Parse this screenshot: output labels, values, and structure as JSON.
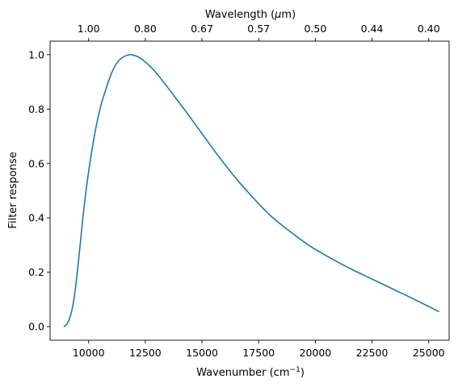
{
  "chart_data": {
    "type": "line",
    "xlabel": "Wavenumber (cm",
    "xlabel_superscript": "−1",
    "xlabel_suffix": ")",
    "ylabel": "Filter response",
    "top_xlabel": "Wavelength (",
    "top_xlabel_symbol": "μ",
    "top_xlabel_suffix": "m)",
    "xlim": [
      8300,
      25900
    ],
    "ylim": [
      -0.05,
      1.05
    ],
    "grid": false,
    "legend": "none",
    "line_color": "#1f77b4",
    "x_ticks": [
      10000,
      12500,
      15000,
      17500,
      20000,
      22500,
      25000
    ],
    "x_tick_labels": [
      "10000",
      "12500",
      "15000",
      "17500",
      "20000",
      "22500",
      "25000"
    ],
    "y_ticks": [
      0.0,
      0.2,
      0.4,
      0.6,
      0.8,
      1.0
    ],
    "y_tick_labels": [
      "0.0",
      "0.2",
      "0.4",
      "0.6",
      "0.8",
      "1.0"
    ],
    "top_ticks": [
      10000,
      12500,
      15000,
      17500,
      20000,
      22500,
      25000
    ],
    "top_tick_labels": [
      "1.00",
      "0.80",
      "0.67",
      "0.57",
      "0.50",
      "0.44",
      "0.40"
    ],
    "series": [
      {
        "x": [
          8900,
          9050,
          9200,
          9350,
          9500,
          9650,
          9800,
          10000,
          10250,
          10500,
          10750,
          11000,
          11250,
          11500,
          11800,
          12100,
          12400,
          12800,
          13300,
          13800,
          14300,
          15000,
          15700,
          16500,
          17300,
          18000,
          18800,
          19700,
          20500,
          21500,
          22500,
          23500,
          24500,
          25450
        ],
        "y": [
          0.0,
          0.01,
          0.04,
          0.1,
          0.2,
          0.32,
          0.44,
          0.57,
          0.7,
          0.8,
          0.87,
          0.93,
          0.97,
          0.99,
          1.0,
          0.995,
          0.98,
          0.95,
          0.9,
          0.845,
          0.79,
          0.71,
          0.63,
          0.545,
          0.47,
          0.41,
          0.355,
          0.3,
          0.26,
          0.215,
          0.175,
          0.135,
          0.095,
          0.055
        ]
      }
    ]
  }
}
